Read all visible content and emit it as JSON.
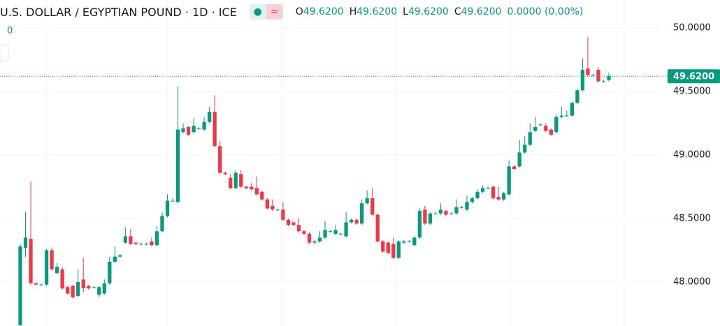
{
  "chart_data": {
    "type": "candlestick",
    "title": "U.S. DOLLAR / EGYPTIAN POUND · 1D · ICE",
    "legend_values": [
      {
        "key": "O",
        "value": "49.6200"
      },
      {
        "key": "H",
        "value": "49.6200"
      },
      {
        "key": "L",
        "value": "49.6200"
      },
      {
        "key": "C",
        "value": "49.6200"
      }
    ],
    "change": "0.0000 (0.00%)",
    "side_label": "0",
    "up_color": "#089981",
    "down_color": "#f23645",
    "ylim": [
      47.654,
      50.22
    ],
    "yticks": [
      {
        "value": 48,
        "label": "48.0000"
      },
      {
        "value": 48.5,
        "label": "48.5000"
      },
      {
        "value": 49,
        "label": "49.0000"
      },
      {
        "value": 49.5,
        "label": "49.5000"
      },
      {
        "value": 50,
        "label": "50.0000"
      }
    ],
    "grid": true,
    "last_price": {
      "value": 49.62,
      "label": "49.6200"
    },
    "open": [
      47.66,
      48.27,
      48.34,
      47.99,
      47.98,
      47.98,
      48.25,
      48.07,
      48.1,
      47.96,
      47.97,
      47.89,
      48.02,
      47.97,
      47.96,
      47.9,
      47.91,
      47.99,
      48.16,
      48.2,
      48.31,
      48.36,
      48.31,
      48.3,
      48.3,
      48.32,
      48.29,
      48.4,
      48.52,
      48.64,
      48.63,
      49.18,
      49.22,
      49.18,
      49.21,
      49.2,
      49.26,
      49.34,
      49.07,
      48.86,
      48.82,
      48.74,
      48.85,
      48.75,
      48.75,
      48.74,
      48.71,
      48.65,
      48.6,
      48.57,
      48.57,
      48.49,
      48.47,
      48.45,
      48.4,
      48.38,
      48.31,
      48.32,
      48.35,
      48.4,
      48.38,
      48.38,
      48.36,
      48.47,
      48.49,
      48.46,
      48.62,
      48.66,
      48.53,
      48.32,
      48.31,
      48.3,
      48.19,
      48.31,
      48.32,
      48.29,
      48.35,
      48.57,
      48.46,
      48.54,
      48.54,
      48.56,
      48.54,
      48.54,
      48.59,
      48.57,
      48.63,
      48.66,
      48.71,
      48.74,
      48.75,
      48.67,
      48.65,
      48.69,
      48.91,
      48.91,
      49.02,
      49.08,
      49.19,
      49.24,
      49.23,
      49.2,
      49.18,
      49.3,
      49.31,
      49.31,
      49.41,
      49.51,
      49.68,
      49.63,
      49.67,
      49.58,
      49.59
    ],
    "high": [
      48.3,
      48.55,
      48.79,
      48.0,
      47.99,
      48.26,
      48.27,
      48.15,
      48.12,
      47.97,
      47.98,
      48.1,
      48.19,
      47.98,
      47.97,
      47.97,
      48.02,
      48.2,
      48.28,
      48.22,
      48.43,
      48.42,
      48.32,
      48.31,
      48.31,
      48.35,
      48.44,
      48.55,
      48.69,
      48.66,
      49.54,
      49.25,
      49.23,
      49.29,
      49.22,
      49.3,
      49.38,
      49.47,
      49.11,
      48.87,
      48.85,
      48.88,
      48.88,
      48.76,
      48.78,
      48.83,
      48.72,
      48.66,
      48.65,
      48.58,
      48.63,
      48.5,
      48.48,
      48.5,
      48.41,
      48.39,
      48.33,
      48.4,
      48.48,
      48.41,
      48.45,
      48.39,
      48.55,
      48.5,
      48.5,
      48.65,
      48.72,
      48.74,
      48.54,
      48.33,
      48.32,
      48.35,
      48.33,
      48.33,
      48.33,
      48.36,
      48.58,
      48.6,
      48.55,
      48.55,
      48.62,
      48.57,
      48.55,
      48.65,
      48.6,
      48.68,
      48.67,
      48.73,
      48.76,
      48.75,
      48.76,
      48.75,
      48.71,
      48.96,
      48.92,
      49.12,
      49.15,
      49.25,
      49.3,
      49.25,
      49.25,
      49.21,
      49.32,
      49.38,
      49.35,
      49.42,
      49.52,
      49.76,
      49.93,
      49.64,
      49.69,
      49.59,
      49.65
    ],
    "low": [
      47.65,
      48.2,
      47.98,
      47.97,
      47.97,
      47.97,
      48.09,
      48.06,
      47.94,
      47.9,
      47.87,
      47.88,
      47.92,
      47.94,
      47.95,
      47.88,
      47.9,
      47.98,
      48.15,
      48.19,
      48.3,
      48.29,
      48.29,
      48.29,
      48.29,
      48.28,
      48.28,
      48.39,
      48.51,
      48.63,
      48.62,
      49.17,
      49.15,
      49.17,
      49.2,
      49.19,
      49.25,
      49.06,
      48.85,
      48.84,
      48.73,
      48.73,
      48.74,
      48.73,
      48.72,
      48.68,
      48.64,
      48.57,
      48.56,
      48.56,
      48.48,
      48.44,
      48.44,
      48.39,
      48.37,
      48.3,
      48.3,
      48.31,
      48.34,
      48.39,
      48.37,
      48.37,
      48.35,
      48.46,
      48.45,
      48.45,
      48.61,
      48.52,
      48.31,
      48.23,
      48.22,
      48.18,
      48.18,
      48.3,
      48.31,
      48.28,
      48.34,
      48.45,
      48.45,
      48.53,
      48.53,
      48.52,
      48.53,
      48.53,
      48.58,
      48.56,
      48.62,
      48.65,
      48.7,
      48.73,
      48.65,
      48.64,
      48.64,
      48.68,
      48.88,
      48.9,
      49.01,
      49.07,
      49.18,
      49.23,
      49.18,
      49.15,
      49.17,
      49.29,
      49.3,
      49.3,
      49.4,
      49.5,
      49.62,
      49.62,
      49.57,
      49.57,
      49.58
    ],
    "close": [
      48.28,
      48.35,
      47.99,
      47.98,
      47.98,
      48.25,
      48.1,
      48.12,
      47.95,
      47.91,
      47.88,
      48.0,
      47.95,
      47.95,
      47.96,
      47.96,
      47.99,
      48.16,
      48.2,
      48.21,
      48.36,
      48.3,
      48.3,
      48.3,
      48.3,
      48.29,
      48.4,
      48.52,
      48.64,
      48.64,
      49.2,
      49.21,
      49.16,
      49.23,
      49.21,
      49.26,
      49.34,
      49.07,
      48.86,
      48.85,
      48.74,
      48.86,
      48.75,
      48.74,
      48.73,
      48.69,
      48.65,
      48.58,
      48.57,
      48.57,
      48.49,
      48.45,
      48.45,
      48.4,
      48.38,
      48.31,
      48.32,
      48.35,
      48.41,
      48.4,
      48.41,
      48.38,
      48.47,
      48.49,
      48.46,
      48.62,
      48.66,
      48.53,
      48.32,
      48.24,
      48.23,
      48.19,
      48.32,
      48.32,
      48.32,
      48.35,
      48.56,
      48.46,
      48.54,
      48.54,
      48.57,
      48.53,
      48.54,
      48.59,
      48.59,
      48.63,
      48.66,
      48.71,
      48.74,
      48.74,
      48.66,
      48.65,
      48.7,
      48.91,
      48.89,
      49.02,
      49.08,
      49.18,
      49.22,
      49.24,
      49.19,
      49.16,
      49.3,
      49.31,
      49.31,
      49.41,
      49.51,
      49.67,
      49.63,
      49.63,
      49.58,
      49.58,
      49.62
    ]
  }
}
